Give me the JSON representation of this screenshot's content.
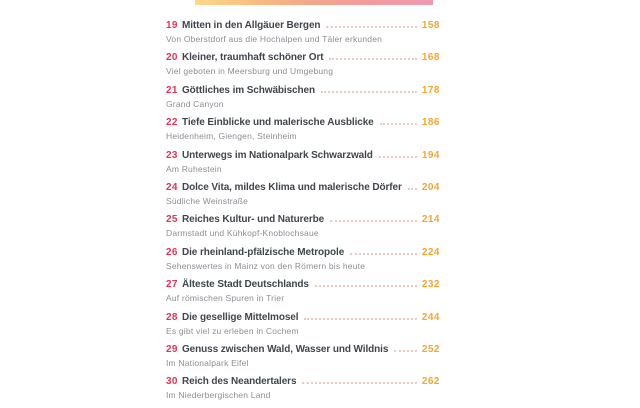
{
  "top_bar": {
    "gradient": [
      "#fbd98c",
      "#f8bc80",
      "#f4a58b",
      "#f09c9f",
      "#ef9ab2"
    ]
  },
  "colors": {
    "number": "#e43253",
    "title": "#41464d",
    "subtitle": "#8a8e95",
    "page": "#f7a430",
    "dots": "#f0c7c3"
  },
  "toc": {
    "entries": [
      {
        "number": "19",
        "title": "Mitten in den Allgäuer Bergen",
        "page": "158",
        "subtitle": "Von Oberstdorf aus die Hochalpen und Täler erkunden"
      },
      {
        "number": "20",
        "title": "Kleiner, traumhaft schöner Ort",
        "page": "168",
        "subtitle": "Viel geboten in Meersburg und Umgebung"
      },
      {
        "number": "21",
        "title": "Göttliches im Schwäbischen",
        "page": "178",
        "subtitle": "Grand Canyon"
      },
      {
        "number": "22",
        "title": "Tiefe Einblicke und malerische Ausblicke",
        "page": "186",
        "subtitle": "Heidenheim, Giengen, Steinheim"
      },
      {
        "number": "23",
        "title": "Unterwegs im Nationalpark Schwarzwald",
        "page": "194",
        "subtitle": "Am Ruhestein"
      },
      {
        "number": "24",
        "title": "Dolce Vita, mildes Klima und malerische Dörfer",
        "page": "204",
        "subtitle": "Südliche Weinstraße"
      },
      {
        "number": "25",
        "title": "Reiches Kultur- und Naturerbe",
        "page": "214",
        "subtitle": "Darmstadt und Kühkopf-Knoblochsaue"
      },
      {
        "number": "26",
        "title": "Die rheinland-pfälzische Metropole",
        "page": "224",
        "subtitle": "Sehenswertes in Mainz von den Römern bis heute"
      },
      {
        "number": "27",
        "title": "Älteste Stadt Deutschlands",
        "page": "232",
        "subtitle": "Auf römischen Spuren in Trier"
      },
      {
        "number": "28",
        "title": "Die gesellige Mittelmosel",
        "page": "244",
        "subtitle": "Es gibt viel zu erleben in Cochem"
      },
      {
        "number": "29",
        "title": "Genuss zwischen Wald, Wasser und Wildnis",
        "page": "252",
        "subtitle": "Im Nationalpark Eifel"
      },
      {
        "number": "30",
        "title": "Reich des Neandertalers",
        "page": "262",
        "subtitle": "Im Niederbergischen Land"
      }
    ]
  }
}
